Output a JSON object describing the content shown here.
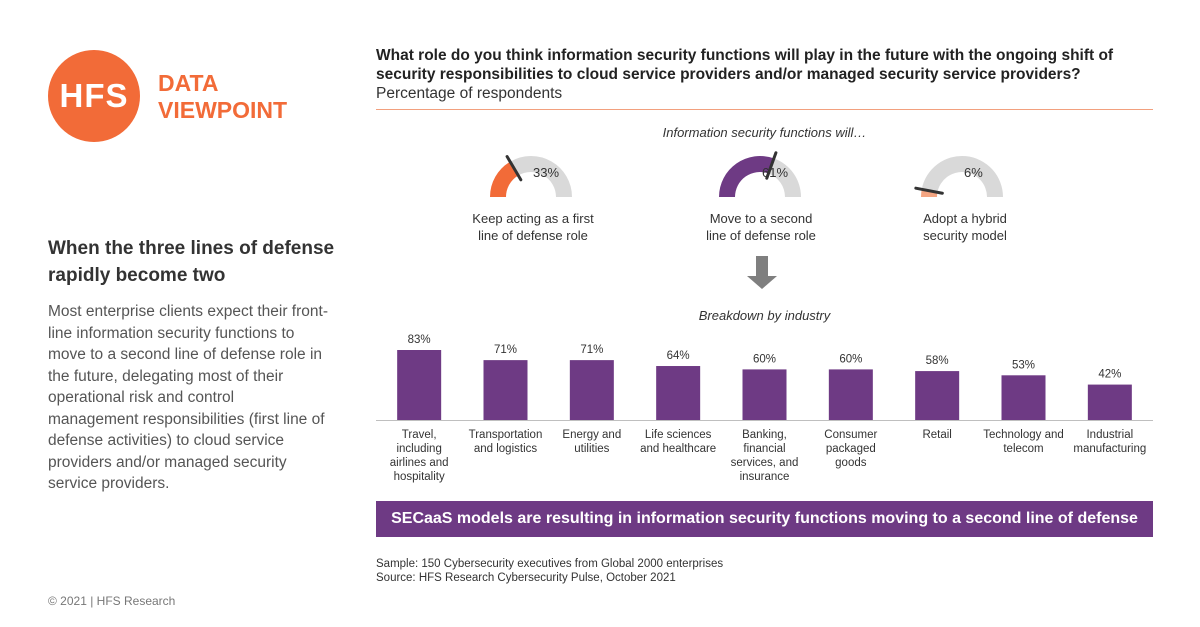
{
  "logo": {
    "mark": "HFS",
    "line1": "DATA",
    "line2": "VIEWPOINT"
  },
  "headline": "When the three lines of defense rapidly become two",
  "body": "Most enterprise clients expect their front-line information security functions to move to a second line of defense role in the future, delegating most of their operational risk and control management responsibilities (first line of defense activities) to cloud service providers and/or managed security service providers.",
  "copyright": "© 2021 | HFS Research",
  "question": "What role do you think information security functions will play in the future with the ongoing shift of security responsibilities to cloud service providers and/or managed security service providers?",
  "question_sub": "Percentage of respondents",
  "gauge_heading": "Information security functions will…",
  "breakdown_heading": "Breakdown by industry",
  "banner": "SECaaS models are resulting in information security functions moving to a second line of defense",
  "sample_line1": "Sample: 150 Cybersecurity executives from Global 2000 enterprises",
  "sample_line2": "Source: HFS Research Cybersecurity Pulse, October 2021",
  "colors": {
    "orange": "#f26b38",
    "purple": "#6e3a84",
    "gray": "#d9d9d9",
    "light_orange": "#f4a582"
  },
  "gauges": [
    {
      "value": 33,
      "label": "33%",
      "line1": "Keep acting as a first",
      "line2": "line of defense role",
      "color": "#f26b38"
    },
    {
      "value": 61,
      "label": "61%",
      "line1": "Move to a second",
      "line2": "line of defense role",
      "color": "#6e3a84"
    },
    {
      "value": 6,
      "label": "6%",
      "line1": "Adopt a hybrid",
      "line2": "security model",
      "color": "#f4a582"
    }
  ],
  "chart_data": {
    "type": "bar",
    "categories": [
      "Travel, including airlines and hospitality",
      "Transportation and logistics",
      "Energy and utilities",
      "Life sciences and healthcare",
      "Banking, financial services, and insurance",
      "Consumer packaged goods",
      "Retail",
      "Technology and telecom",
      "Industrial manufacturing"
    ],
    "category_lines": [
      [
        "Travel,",
        "including",
        "airlines and",
        "hospitality"
      ],
      [
        "Transportation",
        "and logistics"
      ],
      [
        "Energy and",
        "utilities"
      ],
      [
        "Life sciences",
        "and healthcare"
      ],
      [
        "Banking,",
        "financial",
        "services, and",
        "insurance"
      ],
      [
        "Consumer",
        "packaged",
        "goods"
      ],
      [
        "Retail"
      ],
      [
        "Technology and",
        "telecom"
      ],
      [
        "Industrial",
        "manufacturing"
      ]
    ],
    "values": [
      83,
      71,
      71,
      64,
      60,
      60,
      58,
      53,
      42
    ],
    "value_labels": [
      "83%",
      "71%",
      "71%",
      "64%",
      "60%",
      "60%",
      "58%",
      "53%",
      "42%"
    ],
    "title": "Breakdown by industry",
    "xlabel": "",
    "ylabel": "",
    "ylim": [
      0,
      100
    ],
    "color": "#6e3a84",
    "grid": false,
    "legend": "none"
  }
}
